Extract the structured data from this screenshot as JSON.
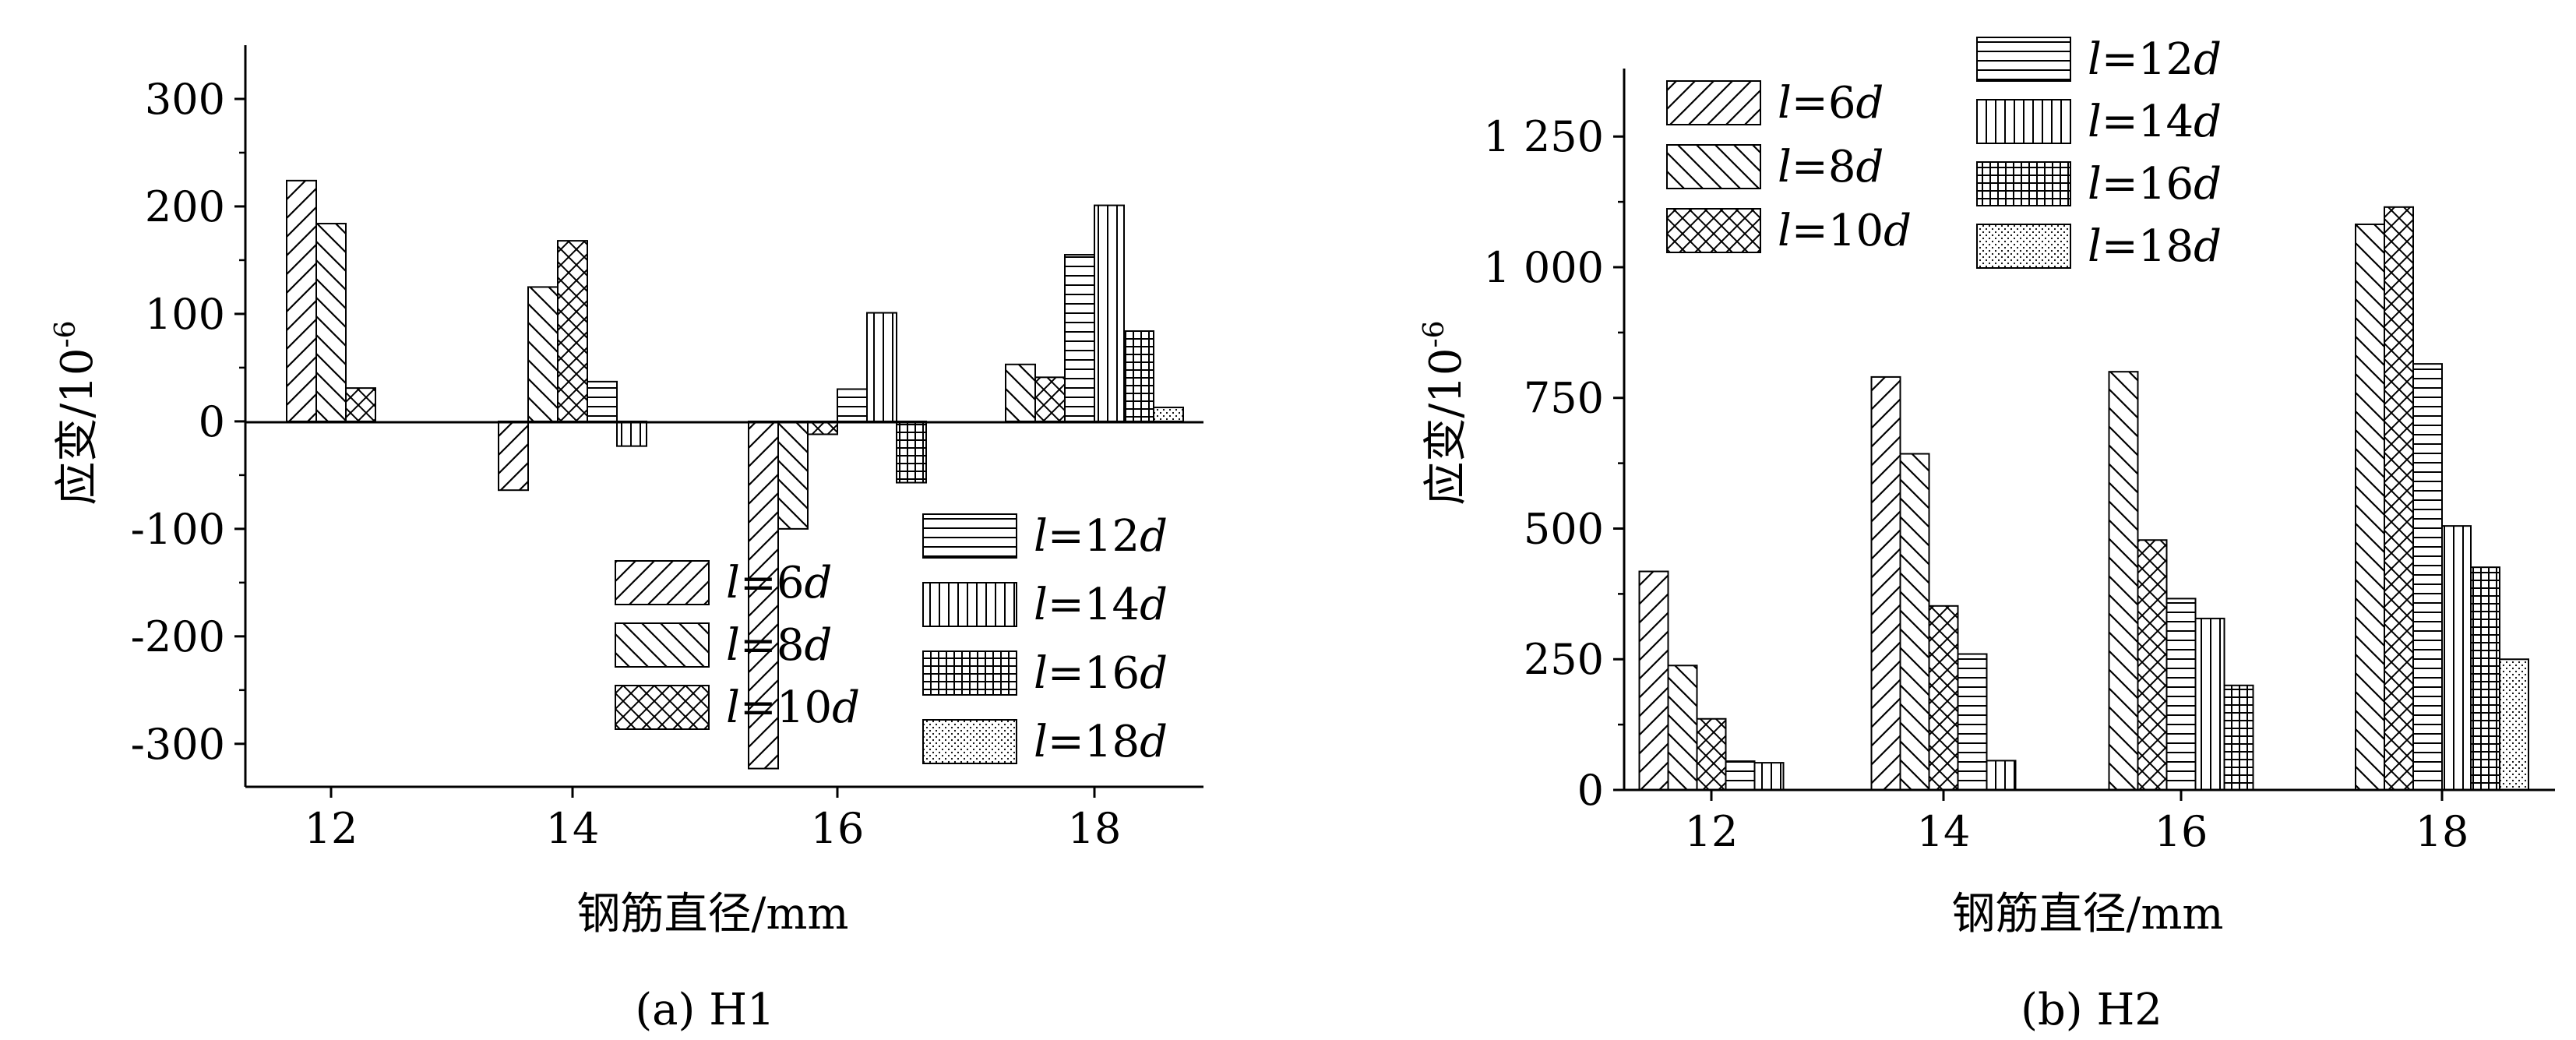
{
  "chart_data": [
    {
      "type": "bar",
      "caption": "(a) H1",
      "xlabel": "钢筋直径/mm",
      "ylabel_main": "应变/10",
      "ylabel_exp": "-6",
      "categories": [
        "12",
        "14",
        "16",
        "18"
      ],
      "ylim": [
        -340,
        350
      ],
      "yticks": [
        -300,
        -200,
        -100,
        0,
        100,
        200,
        300
      ],
      "ytick_labels": [
        "-300",
        "-200",
        "-100",
        "0",
        "100",
        "200",
        "300"
      ],
      "series": [
        {
          "name_var": "l",
          "name_mid": "=6",
          "name_sub": "d",
          "values": [
            224,
            -64,
            -323,
            null
          ]
        },
        {
          "name_var": "l",
          "name_mid": "=8",
          "name_sub": "d",
          "values": [
            184,
            125,
            -100,
            53
          ]
        },
        {
          "name_var": "l",
          "name_mid": "=10",
          "name_sub": "d",
          "values": [
            31,
            168,
            -12,
            41
          ]
        },
        {
          "name_var": "l",
          "name_mid": "=12",
          "name_sub": "d",
          "values": [
            null,
            37,
            30,
            155
          ]
        },
        {
          "name_var": "l",
          "name_mid": "=14",
          "name_sub": "d",
          "values": [
            null,
            -23,
            101,
            201
          ]
        },
        {
          "name_var": "l",
          "name_mid": "=16",
          "name_sub": "d",
          "values": [
            null,
            null,
            -57,
            84
          ]
        },
        {
          "name_var": "l",
          "name_mid": "=18",
          "name_sub": "d",
          "values": [
            null,
            null,
            null,
            13
          ]
        }
      ],
      "grid": false,
      "legend_placement": "bottom-right"
    },
    {
      "type": "bar",
      "caption": "(b) H2",
      "xlabel": "钢筋直径/mm",
      "ylabel_main": "应变/10",
      "ylabel_exp": "-6",
      "categories": [
        "12",
        "14",
        "16",
        "18"
      ],
      "ylim": [
        0,
        1380
      ],
      "yticks": [
        0,
        250,
        500,
        750,
        1000,
        1250
      ],
      "ytick_labels": [
        "0",
        "250",
        "500",
        "750",
        "1 000",
        "1 250"
      ],
      "series": [
        {
          "name_var": "l",
          "name_mid": "=6",
          "name_sub": "d",
          "values": [
            418,
            790,
            null,
            null
          ]
        },
        {
          "name_var": "l",
          "name_mid": "=8",
          "name_sub": "d",
          "values": [
            238,
            643,
            800,
            1082
          ]
        },
        {
          "name_var": "l",
          "name_mid": "=10",
          "name_sub": "d",
          "values": [
            136,
            352,
            478,
            1115
          ]
        },
        {
          "name_var": "l",
          "name_mid": "=12",
          "name_sub": "d",
          "values": [
            55,
            260,
            366,
            815
          ]
        },
        {
          "name_var": "l",
          "name_mid": "=14",
          "name_sub": "d",
          "values": [
            52,
            56,
            328,
            505
          ]
        },
        {
          "name_var": "l",
          "name_mid": "=16",
          "name_sub": "d",
          "values": [
            null,
            null,
            200,
            426
          ]
        },
        {
          "name_var": "l",
          "name_mid": "=18",
          "name_sub": "d",
          "values": [
            null,
            null,
            null,
            250
          ]
        }
      ],
      "grid": false,
      "legend_placement": "top-left"
    }
  ]
}
